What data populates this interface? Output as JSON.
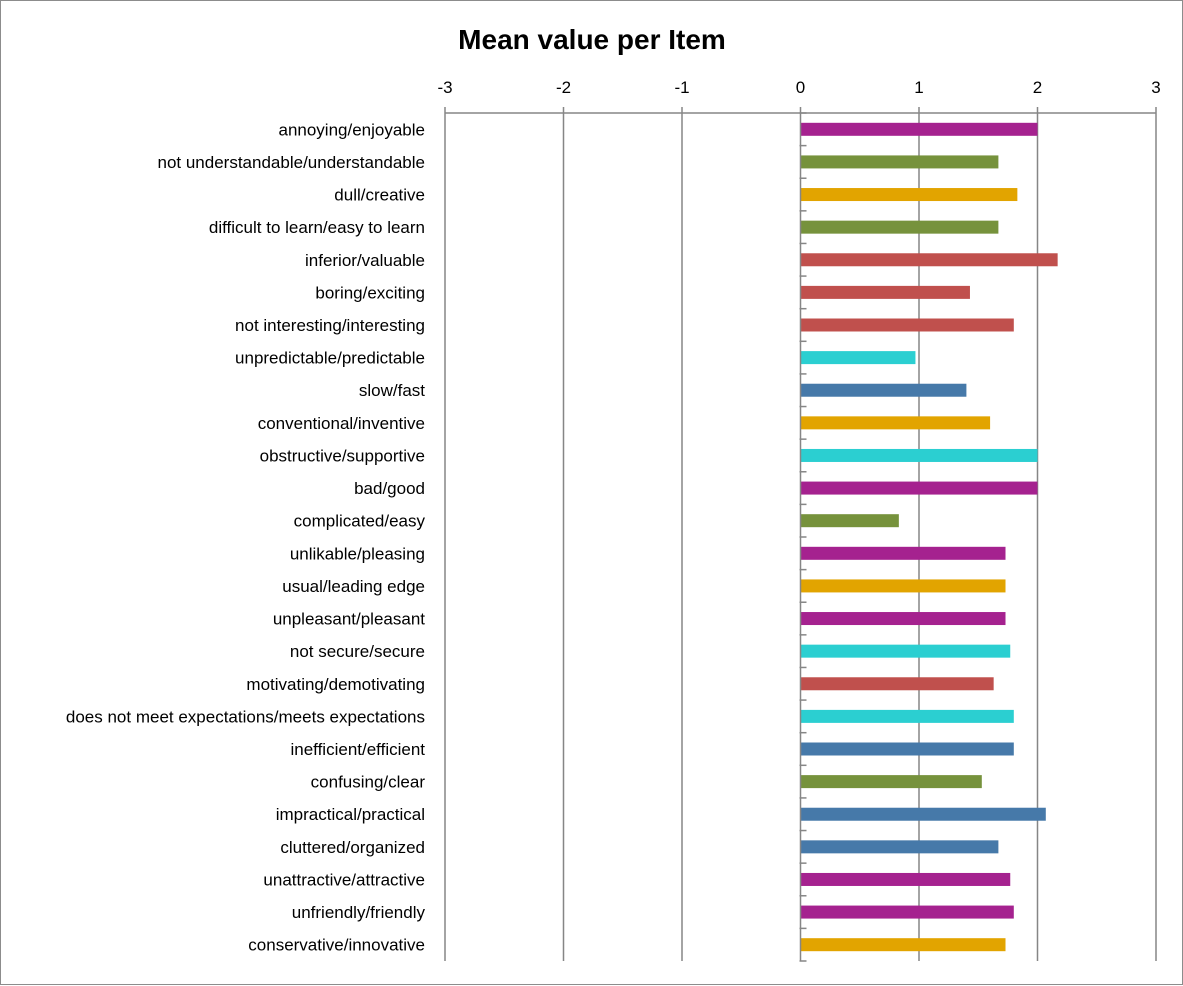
{
  "chart_data": {
    "type": "bar",
    "orientation": "horizontal",
    "title": "Mean value per Item",
    "xlabel": "",
    "ylabel": "",
    "xlim": [
      -3,
      3
    ],
    "x_ticks": [
      "-3",
      "-2",
      "-1",
      "0",
      "1",
      "2",
      "3"
    ],
    "grid": "vertical",
    "legend": "none",
    "categories": [
      "annoying/enjoyable",
      "not understandable/understandable",
      "dull/creative",
      "difficult to learn/easy to learn",
      "inferior/valuable",
      "boring/exciting",
      "not interesting/interesting",
      "unpredictable/predictable",
      "slow/fast",
      "conventional/inventive",
      "obstructive/supportive",
      "bad/good",
      "complicated/easy",
      "unlikable/pleasing",
      "usual/leading edge",
      "unpleasant/pleasant",
      "not secure/secure",
      "motivating/demotivating",
      "does not meet expectations/meets expectations",
      "inefficient/efficient",
      "confusing/clear",
      "impractical/practical",
      "cluttered/organized",
      "unattractive/attractive",
      "unfriendly/friendly",
      "conservative/innovative"
    ],
    "values": [
      2.0,
      1.67,
      1.83,
      1.67,
      2.17,
      1.43,
      1.8,
      0.97,
      1.4,
      1.6,
      2.0,
      2.0,
      0.83,
      1.73,
      1.73,
      1.73,
      1.77,
      1.63,
      1.8,
      1.8,
      1.53,
      2.07,
      1.67,
      1.77,
      1.8,
      1.73
    ],
    "bar_colors": [
      "#A5228F",
      "#76923C",
      "#E2A400",
      "#76923C",
      "#C0504D",
      "#C0504D",
      "#C0504D",
      "#2BCFD1",
      "#4679A9",
      "#E2A400",
      "#2BCFD1",
      "#A5228F",
      "#76923C",
      "#A5228F",
      "#E2A400",
      "#A5228F",
      "#2BCFD1",
      "#C0504D",
      "#2BCFD1",
      "#4679A9",
      "#76923C",
      "#4679A9",
      "#4679A9",
      "#A5228F",
      "#A5228F",
      "#E2A400"
    ],
    "colors": {
      "gridline": "#868686",
      "axis": "#868686",
      "text": "#000000"
    }
  }
}
